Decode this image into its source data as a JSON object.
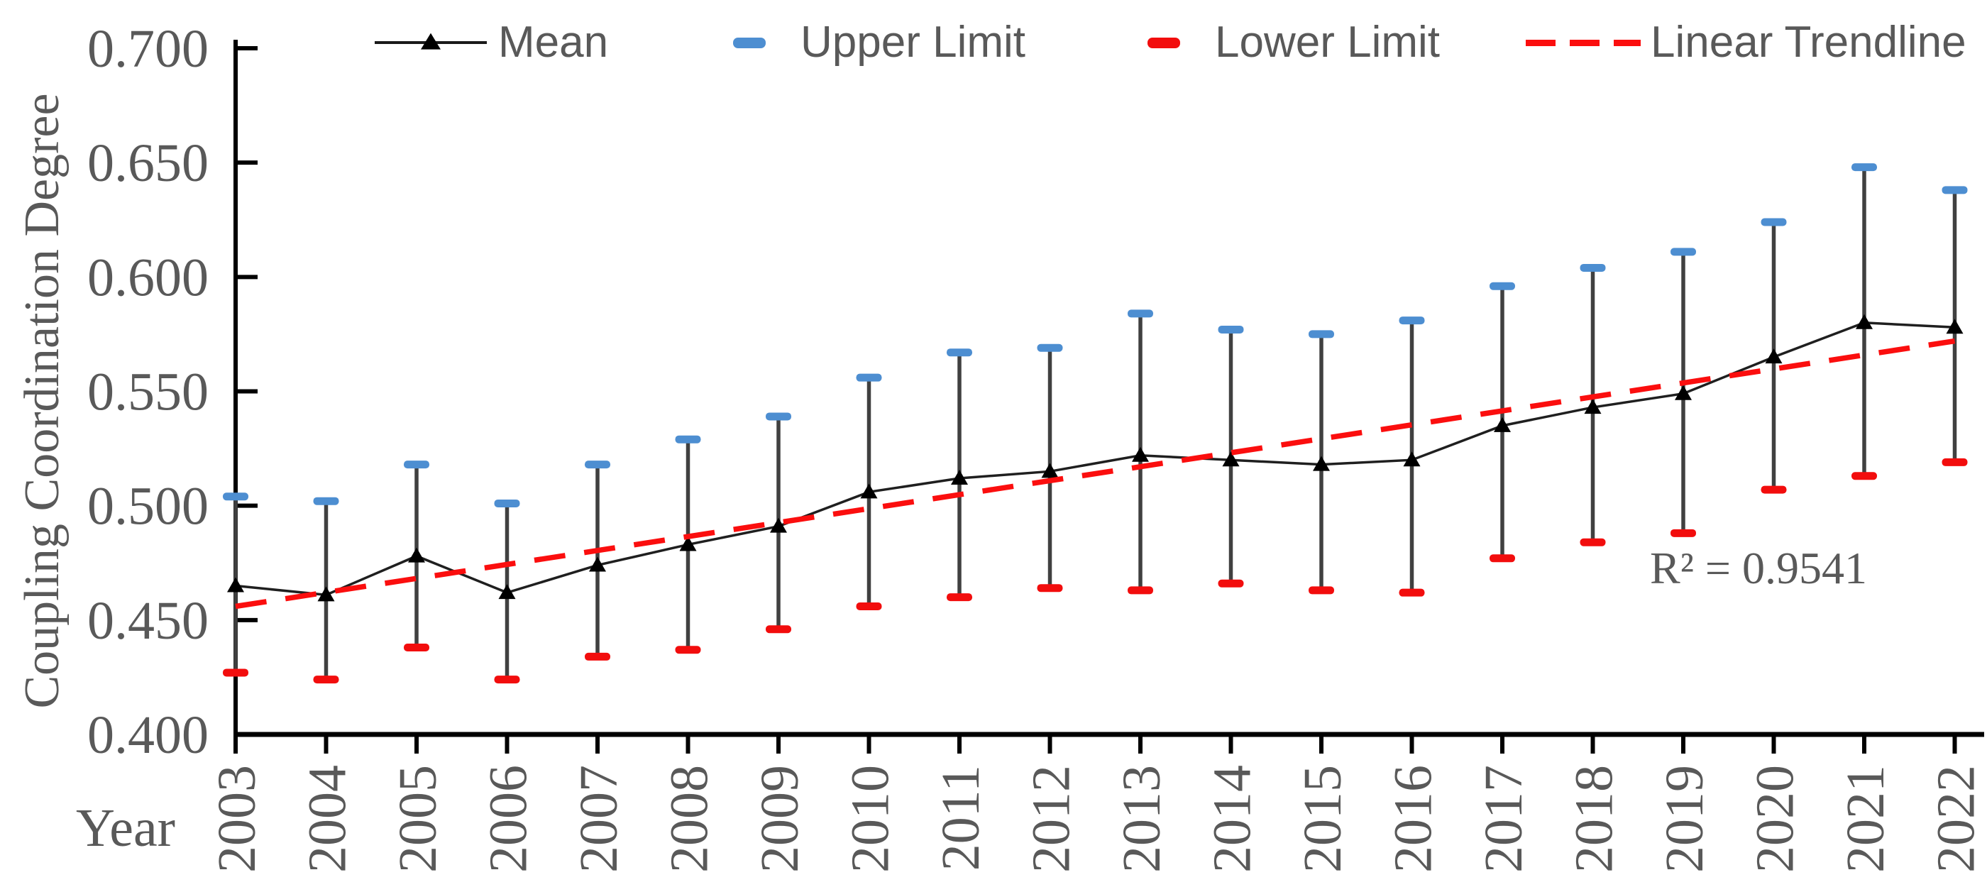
{
  "page": {
    "background": "#ffffff"
  },
  "legend": {
    "items": [
      {
        "id": "mean",
        "label": "Mean",
        "swatch": "line-triangle",
        "color": "#1a1a1a"
      },
      {
        "id": "upper",
        "label": "Upper Limit",
        "swatch": "dash",
        "color": "#4D8ED1"
      },
      {
        "id": "lower",
        "label": "Lower Limit",
        "swatch": "dash",
        "color": "#F20D0D"
      },
      {
        "id": "trend",
        "label": "Linear Trendline",
        "swatch": "dashed-line",
        "color": "#FB0E0E"
      }
    ]
  },
  "chart_data": {
    "type": "line",
    "title": "",
    "xlabel": "Year",
    "ylabel": "Coupling Coordination Degree",
    "ylim": [
      0.4,
      0.7
    ],
    "y_ticks": [
      "0.400",
      "0.450",
      "0.500",
      "0.550",
      "0.600",
      "0.650",
      "0.700"
    ],
    "grid": false,
    "legend_position": "top",
    "categories": [
      "2003",
      "2004",
      "2005",
      "2006",
      "2007",
      "2008",
      "2009",
      "2010",
      "2011",
      "2012",
      "2013",
      "2014",
      "2015",
      "2016",
      "2017",
      "2018",
      "2019",
      "2020",
      "2021",
      "2022"
    ],
    "series": [
      {
        "name": "Mean",
        "type": "line",
        "marker": "triangle",
        "color": "#1f1f1f",
        "values": [
          0.465,
          0.461,
          0.478,
          0.462,
          0.474,
          0.483,
          0.491,
          0.506,
          0.512,
          0.515,
          0.522,
          0.52,
          0.518,
          0.52,
          0.535,
          0.543,
          0.549,
          0.565,
          0.58,
          0.578
        ]
      },
      {
        "name": "Upper Limit",
        "type": "error-cap",
        "color": "#4D8ED1",
        "values": [
          0.504,
          0.502,
          0.518,
          0.501,
          0.518,
          0.529,
          0.539,
          0.556,
          0.567,
          0.569,
          0.584,
          0.577,
          0.575,
          0.581,
          0.596,
          0.604,
          0.611,
          0.624,
          0.648,
          0.638
        ]
      },
      {
        "name": "Lower Limit",
        "type": "error-cap",
        "color": "#F20D0D",
        "values": [
          0.427,
          0.424,
          0.438,
          0.424,
          0.434,
          0.437,
          0.446,
          0.456,
          0.46,
          0.464,
          0.463,
          0.466,
          0.463,
          0.462,
          0.477,
          0.484,
          0.488,
          0.507,
          0.513,
          0.519
        ]
      }
    ],
    "error_bar_color": "#404040",
    "trendline": {
      "name": "Linear Trendline",
      "color": "#FB0E0E",
      "style": "dashed",
      "y_start": 0.456,
      "y_end": 0.572
    },
    "annotation": {
      "text": "R² = 0.9541"
    }
  }
}
